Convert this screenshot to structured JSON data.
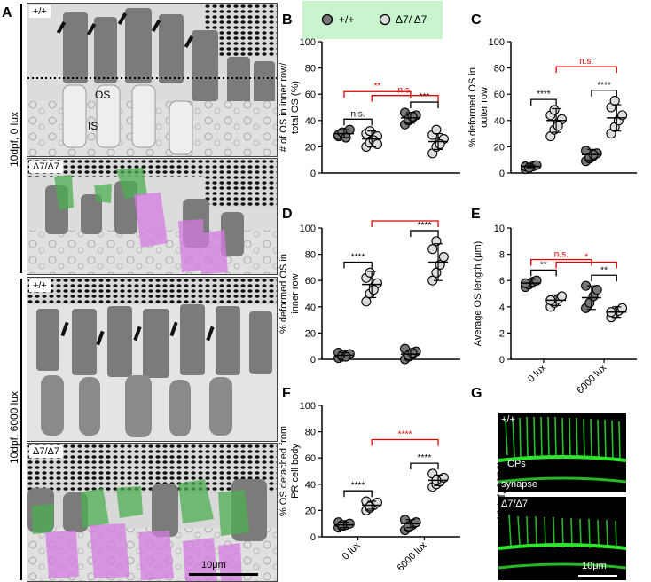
{
  "panel_labels": {
    "A": "A",
    "B": "B",
    "C": "C",
    "D": "D",
    "E": "E",
    "F": "F",
    "G": "G"
  },
  "panel_a": {
    "side_label_top": "10dpf, 0 lux",
    "side_label_bottom": "10dpf, 6000 lux",
    "tiles": [
      {
        "genotype": "+/+",
        "annot": [
          "OS",
          "IS"
        ]
      },
      {
        "genotype": "Δ7/Δ7",
        "annot": []
      },
      {
        "genotype": "+/+",
        "annot": []
      },
      {
        "genotype": "Δ7/Δ7",
        "annot": []
      }
    ],
    "scale_bar": "10μm",
    "colors": {
      "green_overlay": "#4caf50",
      "magenta_overlay": "#d47be0"
    }
  },
  "legend": {
    "wt": "+/+",
    "mut": "Δ7/ Δ7",
    "bg": "#c8f5cd"
  },
  "colors": {
    "wt_fill": "#777777",
    "mut_fill": "#dddddd",
    "sig_black": "#000000",
    "sig_red": "#e00000"
  },
  "chart_data": [
    {
      "id": "B",
      "type": "scatter",
      "ylabel": "# of OS in inner row/ total OS (%)",
      "ylim": [
        0,
        100
      ],
      "yticks": [
        0,
        20,
        40,
        60,
        80,
        100
      ],
      "groups": [
        "+/+ 0 lux",
        "Δ7/Δ7 0 lux",
        "+/+ 6000 lux",
        "Δ7/Δ7 6000 lux"
      ],
      "means": [
        30,
        26,
        42,
        24
      ],
      "sd": [
        3,
        6,
        4,
        6
      ],
      "points": [
        [
          28,
          30,
          31,
          33,
          29,
          31,
          27
        ],
        [
          20,
          23,
          26,
          28,
          30,
          32,
          25,
          22
        ],
        [
          37,
          40,
          42,
          44,
          46,
          41,
          43
        ],
        [
          15,
          20,
          24,
          26,
          29,
          33,
          22
        ]
      ],
      "significance": [
        {
          "a": 0,
          "b": 1,
          "label": "n.s.",
          "color": "black"
        },
        {
          "a": 2,
          "b": 3,
          "label": "***",
          "color": "black"
        },
        {
          "a": 0,
          "b": 2,
          "label": "**",
          "color": "red"
        },
        {
          "a": 1,
          "b": 3,
          "label": "n.s.",
          "color": "red"
        }
      ]
    },
    {
      "id": "C",
      "type": "scatter",
      "ylabel": "% deformed OS in outer row",
      "ylim": [
        0,
        100
      ],
      "yticks": [
        0,
        20,
        40,
        60,
        80,
        100
      ],
      "groups": [
        "+/+ 0 lux",
        "Δ7/Δ7 0 lux",
        "+/+ 6000 lux",
        "Δ7/Δ7 6000 lux"
      ],
      "means": [
        5,
        40,
        14,
        42
      ],
      "sd": [
        1,
        9,
        4,
        10
      ],
      "points": [
        [
          3,
          4,
          5,
          6,
          5,
          4
        ],
        [
          28,
          33,
          38,
          41,
          44,
          48,
          36
        ],
        [
          9,
          11,
          13,
          15,
          17,
          12,
          14
        ],
        [
          30,
          35,
          40,
          44,
          50,
          55
        ]
      ],
      "significance": [
        {
          "a": 0,
          "b": 1,
          "label": "****",
          "color": "black"
        },
        {
          "a": 2,
          "b": 3,
          "label": "****",
          "color": "black"
        },
        {
          "a": 1,
          "b": 3,
          "label": "n.s.",
          "color": "red"
        }
      ]
    },
    {
      "id": "D",
      "type": "scatter",
      "ylabel": "% deformed OS in inner row",
      "ylim": [
        0,
        100
      ],
      "yticks": [
        0,
        20,
        40,
        60,
        80,
        100
      ],
      "groups": [
        "+/+ 0 lux",
        "Δ7/Δ7 0 lux",
        "+/+ 6000 lux",
        "Δ7/Δ7 6000 lux"
      ],
      "means": [
        3,
        57,
        4,
        74
      ],
      "sd": [
        2,
        10,
        3,
        14
      ],
      "points": [
        [
          1,
          2,
          3,
          4,
          5,
          3,
          2
        ],
        [
          44,
          50,
          55,
          58,
          62,
          66,
          53
        ],
        [
          0,
          2,
          4,
          6,
          8,
          3,
          5
        ],
        [
          60,
          66,
          72,
          78,
          84,
          90
        ]
      ],
      "significance": [
        {
          "a": 0,
          "b": 1,
          "label": "****",
          "color": "black"
        },
        {
          "a": 2,
          "b": 3,
          "label": "****",
          "color": "black"
        },
        {
          "a": 1,
          "b": 3,
          "label": "**",
          "color": "red"
        }
      ]
    },
    {
      "id": "E",
      "type": "scatter",
      "ylabel": "Average OS length (μm)",
      "ylim": [
        0,
        10
      ],
      "yticks": [
        0,
        2,
        4,
        6,
        8,
        10
      ],
      "xlabels": [
        "0 lux",
        "6000 lux"
      ],
      "groups": [
        "+/+ 0 lux",
        "Δ7/Δ7 0 lux",
        "+/+ 6000 lux",
        "Δ7/Δ7 6000 lux"
      ],
      "means": [
        5.8,
        4.5,
        4.7,
        3.6
      ],
      "sd": [
        0.3,
        0.4,
        0.9,
        0.4
      ],
      "points": [
        [
          5.5,
          5.7,
          5.9,
          6.0,
          5.8
        ],
        [
          4.0,
          4.3,
          4.6,
          4.8,
          4.5
        ],
        [
          3.9,
          4.3,
          4.8,
          5.3,
          5.6
        ],
        [
          3.2,
          3.5,
          3.7,
          3.9,
          3.6
        ]
      ],
      "significance": [
        {
          "a": 0,
          "b": 1,
          "label": "**",
          "color": "black"
        },
        {
          "a": 2,
          "b": 3,
          "label": "**",
          "color": "black"
        },
        {
          "a": 0,
          "b": 2,
          "label": "n.s.",
          "color": "red"
        },
        {
          "a": 1,
          "b": 3,
          "label": "*",
          "color": "red"
        }
      ]
    },
    {
      "id": "F",
      "type": "scatter",
      "ylabel": "% OS detached from PR cell body",
      "ylim": [
        0,
        100
      ],
      "yticks": [
        0,
        20,
        40,
        60,
        80,
        100
      ],
      "xlabels": [
        "0 lux",
        "6000 lux"
      ],
      "groups": [
        "+/+ 0 lux",
        "Δ7/Δ7 0 lux",
        "+/+ 6000 lux",
        "Δ7/Δ7 6000 lux"
      ],
      "means": [
        9,
        24,
        10,
        43
      ],
      "sd": [
        2,
        3,
        3,
        4
      ],
      "points": [
        [
          7,
          8,
          9,
          10,
          11,
          9
        ],
        [
          20,
          22,
          24,
          26,
          27,
          23
        ],
        [
          5,
          7,
          9,
          11,
          13,
          8
        ],
        [
          38,
          40,
          42,
          45,
          48,
          43
        ]
      ],
      "significance": [
        {
          "a": 0,
          "b": 1,
          "label": "****",
          "color": "black"
        },
        {
          "a": 2,
          "b": 3,
          "label": "****",
          "color": "black"
        },
        {
          "a": 1,
          "b": 3,
          "label": "****",
          "color": "red"
        }
      ]
    }
  ],
  "panel_g": {
    "side_label": "10dpf, 3000lux",
    "tiles": [
      {
        "genotype": "+/+",
        "annots": [
          "CPs",
          "synapse"
        ]
      },
      {
        "genotype": "Δ7/Δ7",
        "annots": []
      }
    ],
    "scale_bar": "10μm",
    "fluor_color": "#2ee52e"
  }
}
